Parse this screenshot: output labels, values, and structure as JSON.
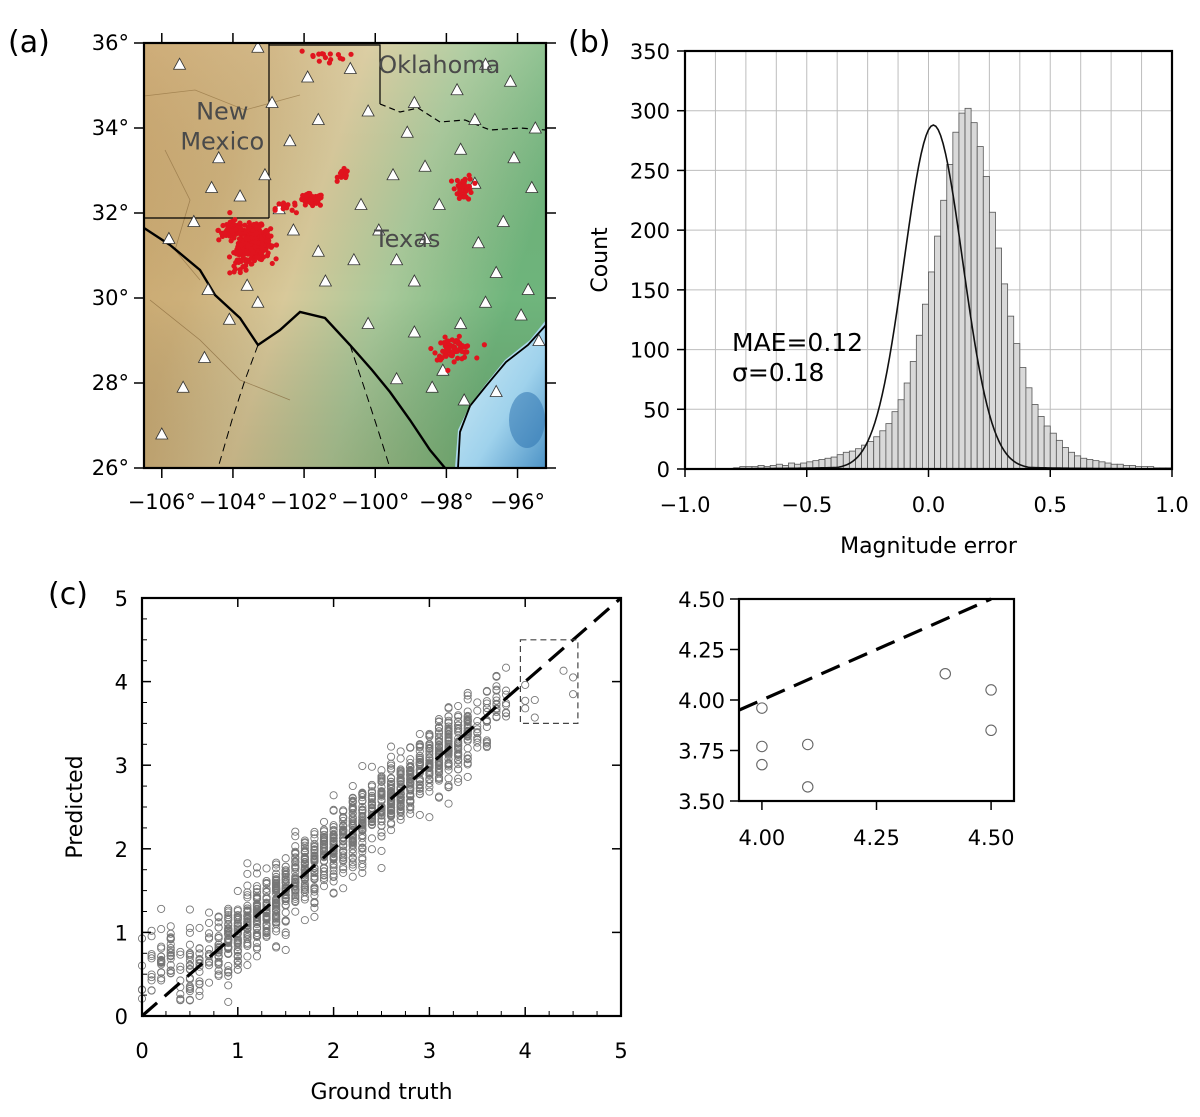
{
  "panel_labels": {
    "a": "(a)",
    "b": "(b)",
    "c": "(c)"
  },
  "chart_data": [
    {
      "type": "scatter",
      "panel": "(a)",
      "kind": "map",
      "xlim": [
        -106.5,
        -95.2
      ],
      "ylim": [
        26,
        36
      ],
      "x_ticks": [
        "−106°",
        "−104°",
        "−102°",
        "−100°",
        "−98°",
        "−96°"
      ],
      "x_tick_values": [
        -106,
        -104,
        -102,
        -100,
        -98,
        -96
      ],
      "y_ticks": [
        "26°",
        "28°",
        "30°",
        "32°",
        "34°",
        "36°"
      ],
      "y_tick_values": [
        26,
        28,
        30,
        32,
        34,
        36
      ],
      "region_labels": [
        {
          "text": "New",
          "lon": -104.3,
          "lat": 34.2
        },
        {
          "text": "Mexico",
          "lon": -104.3,
          "lat": 33.5
        },
        {
          "text": "Oklahoma",
          "lon": -98.2,
          "lat": 35.3
        },
        {
          "text": "Texas",
          "lon": -99.1,
          "lat": 31.2
        }
      ],
      "event_clusters": [
        {
          "lon": -103.4,
          "lat": 31.3,
          "count": 320,
          "spread": [
            0.45,
            0.38
          ]
        },
        {
          "lon": -104.0,
          "lat": 31.6,
          "count": 60,
          "spread": [
            0.4,
            0.25
          ]
        },
        {
          "lon": -101.8,
          "lat": 32.3,
          "count": 45,
          "spread": [
            0.35,
            0.15
          ]
        },
        {
          "lon": -100.9,
          "lat": 32.9,
          "count": 20,
          "spread": [
            0.15,
            0.12
          ]
        },
        {
          "lon": -97.5,
          "lat": 32.6,
          "count": 40,
          "spread": [
            0.25,
            0.3
          ]
        },
        {
          "lon": -97.8,
          "lat": 28.8,
          "count": 70,
          "spread": [
            0.55,
            0.25
          ]
        },
        {
          "lon": -101.5,
          "lat": 35.7,
          "count": 15,
          "spread": [
            0.7,
            0.15
          ]
        },
        {
          "lon": -103.9,
          "lat": 30.8,
          "count": 20,
          "spread": [
            0.4,
            0.35
          ]
        },
        {
          "lon": -102.5,
          "lat": 32.1,
          "count": 12,
          "spread": [
            0.3,
            0.2
          ]
        }
      ],
      "stations": [
        [
          -106.0,
          26.8
        ],
        [
          -105.4,
          27.9
        ],
        [
          -104.8,
          28.6
        ],
        [
          -104.7,
          30.2
        ],
        [
          -104.1,
          29.5
        ],
        [
          -103.6,
          30.3
        ],
        [
          -103.3,
          29.9
        ],
        [
          -105.8,
          31.4
        ],
        [
          -105.1,
          31.8
        ],
        [
          -104.6,
          32.6
        ],
        [
          -104.4,
          33.3
        ],
        [
          -103.8,
          32.4
        ],
        [
          -103.1,
          32.9
        ],
        [
          -102.7,
          32.1
        ],
        [
          -102.3,
          31.6
        ],
        [
          -101.6,
          31.1
        ],
        [
          -101.4,
          30.4
        ],
        [
          -100.6,
          30.9
        ],
        [
          -100.4,
          32.2
        ],
        [
          -99.9,
          31.6
        ],
        [
          -99.4,
          30.9
        ],
        [
          -98.9,
          30.4
        ],
        [
          -98.6,
          31.4
        ],
        [
          -98.2,
          32.2
        ],
        [
          -98.6,
          33.1
        ],
        [
          -99.1,
          33.9
        ],
        [
          -99.5,
          32.9
        ],
        [
          -100.2,
          34.4
        ],
        [
          -101.6,
          34.2
        ],
        [
          -102.4,
          33.7
        ],
        [
          -102.9,
          34.6
        ],
        [
          -101.9,
          35.2
        ],
        [
          -100.7,
          35.4
        ],
        [
          -98.9,
          34.6
        ],
        [
          -97.7,
          34.9
        ],
        [
          -96.9,
          35.5
        ],
        [
          -96.2,
          35.1
        ],
        [
          -97.2,
          34.2
        ],
        [
          -96.1,
          33.3
        ],
        [
          -95.6,
          32.6
        ],
        [
          -96.4,
          31.8
        ],
        [
          -97.1,
          31.3
        ],
        [
          -96.6,
          30.6
        ],
        [
          -95.7,
          30.2
        ],
        [
          -95.9,
          29.6
        ],
        [
          -96.9,
          29.9
        ],
        [
          -97.6,
          29.4
        ],
        [
          -98.1,
          28.3
        ],
        [
          -97.5,
          27.6
        ],
        [
          -98.4,
          27.9
        ],
        [
          -99.4,
          28.1
        ],
        [
          -98.9,
          29.2
        ],
        [
          -100.2,
          29.4
        ],
        [
          -95.4,
          29.0
        ],
        [
          -96.6,
          27.8
        ],
        [
          -97.2,
          32.7
        ],
        [
          -97.6,
          33.5
        ],
        [
          -95.5,
          34.0
        ],
        [
          -105.5,
          35.5
        ],
        [
          -103.3,
          35.9
        ]
      ]
    },
    {
      "type": "bar",
      "panel": "(b)",
      "kind": "histogram",
      "xlabel": "Magnitude error",
      "ylabel": "Count",
      "xlim": [
        -1.0,
        1.0
      ],
      "ylim": [
        0,
        350
      ],
      "x_ticks": [
        "−1.0",
        "−0.5",
        "0.0",
        "0.5",
        "1.0"
      ],
      "x_tick_values": [
        -1.0,
        -0.5,
        0.0,
        0.5,
        1.0
      ],
      "y_ticks": [
        "0",
        "50",
        "100",
        "150",
        "200",
        "250",
        "300",
        "350"
      ],
      "y_tick_values": [
        0,
        50,
        100,
        150,
        200,
        250,
        300,
        350
      ],
      "grid": true,
      "bin_width": 0.025,
      "bins_start": -0.8,
      "counts": [
        1,
        2,
        2,
        2,
        3,
        2,
        3,
        4,
        3,
        5,
        4,
        5,
        6,
        7,
        8,
        9,
        10,
        12,
        14,
        15,
        17,
        20,
        23,
        27,
        32,
        38,
        48,
        58,
        72,
        90,
        112,
        138,
        165,
        195,
        225,
        255,
        282,
        298,
        302,
        290,
        270,
        245,
        215,
        185,
        155,
        128,
        105,
        85,
        68,
        54,
        44,
        36,
        30,
        24,
        18,
        14,
        11,
        9,
        8,
        7,
        6,
        5,
        4,
        4,
        3,
        3,
        2,
        2,
        2,
        1,
        1,
        1
      ],
      "fit_curve": {
        "mean": 0.02,
        "sigma": 0.12,
        "peak": 288
      },
      "annotations": [
        "MAE=0.12",
        "σ=0.18"
      ]
    },
    {
      "type": "scatter",
      "panel": "(c)",
      "xlabel": "Ground truth",
      "ylabel": "Predicted",
      "xlim": [
        0,
        5
      ],
      "ylim": [
        0,
        5
      ],
      "x_ticks": [
        "0",
        "1",
        "2",
        "3",
        "4",
        "5"
      ],
      "y_ticks": [
        "0",
        "1",
        "2",
        "3",
        "4",
        "5"
      ],
      "reference_line": "y = x",
      "inset_box": {
        "x": [
          3.95,
          4.55
        ],
        "y": [
          3.5,
          4.5
        ]
      },
      "point_count": 1400,
      "noise_sd": 0.22,
      "x_range": [
        0.0,
        3.8
      ],
      "outlier_points": [
        [
          4.0,
          3.96
        ],
        [
          4.0,
          3.77
        ],
        [
          4.0,
          3.68
        ],
        [
          4.1,
          3.78
        ],
        [
          4.1,
          3.57
        ],
        [
          4.4,
          4.13
        ],
        [
          4.5,
          4.05
        ],
        [
          4.5,
          3.85
        ]
      ]
    },
    {
      "type": "scatter",
      "panel": "(c) inset",
      "xlim": [
        3.95,
        4.55
      ],
      "ylim": [
        3.5,
        4.5
      ],
      "x_ticks": [
        "4.00",
        "4.25",
        "4.50"
      ],
      "x_tick_values": [
        4.0,
        4.25,
        4.5
      ],
      "y_ticks": [
        "3.50",
        "3.75",
        "4.00",
        "4.25",
        "4.50"
      ],
      "y_tick_values": [
        3.5,
        3.75,
        4.0,
        4.25,
        4.5
      ],
      "reference_line": "y = x",
      "points": [
        [
          4.0,
          3.96
        ],
        [
          4.0,
          3.77
        ],
        [
          4.0,
          3.68
        ],
        [
          4.1,
          3.78
        ],
        [
          4.1,
          3.57
        ],
        [
          4.4,
          4.13
        ],
        [
          4.5,
          4.05
        ],
        [
          4.5,
          3.85
        ]
      ]
    }
  ]
}
